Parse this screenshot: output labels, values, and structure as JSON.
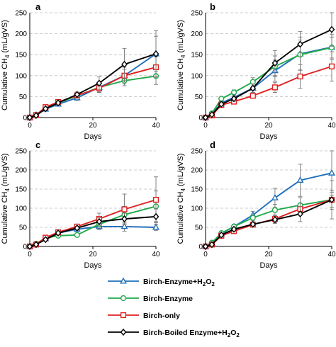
{
  "chart_data": [
    {
      "type": "line",
      "panel_label": "a",
      "xlabel": "Days",
      "ylabel_main": "Cumulative CH",
      "ylabel_sub": "4",
      "ylabel_tail": " (mL/gVS)",
      "xlim": [
        0,
        40
      ],
      "ylim": [
        0,
        250
      ],
      "x_ticks": [
        "0",
        "20",
        "40"
      ],
      "y_ticks": [
        "0",
        "50",
        "100",
        "150",
        "200",
        "250"
      ],
      "grid": "horizontal dashed",
      "x": [
        0,
        2,
        5,
        9,
        15,
        22,
        30,
        40
      ],
      "series": [
        {
          "name": "Birch-Enzyme+H2O2",
          "values": [
            0,
            6,
            20,
            32,
            47,
            72,
            100,
            152
          ],
          "err": [
            0,
            2,
            4,
            5,
            6,
            12,
            20,
            42
          ]
        },
        {
          "name": "Birch-Enzyme",
          "values": [
            0,
            5,
            22,
            35,
            52,
            72,
            88,
            99
          ],
          "err": [
            0,
            2,
            3,
            4,
            5,
            10,
            12,
            20
          ]
        },
        {
          "name": "Birch-only",
          "values": [
            0,
            6,
            25,
            37,
            53,
            70,
            100,
            120
          ],
          "err": [
            0,
            2,
            3,
            4,
            5,
            10,
            15,
            25
          ]
        },
        {
          "name": "Birch-Boiled Enzyme+H2O2",
          "values": [
            0,
            5,
            21,
            35,
            55,
            82,
            127,
            152
          ],
          "err": [
            0,
            2,
            3,
            4,
            6,
            15,
            38,
            55
          ]
        }
      ]
    },
    {
      "type": "line",
      "panel_label": "b",
      "xlabel": "Days",
      "ylabel_main": "Cumulative CH",
      "ylabel_sub": "4",
      "ylabel_tail": " (mL/gVS)",
      "xlim": [
        0,
        40
      ],
      "ylim": [
        0,
        250
      ],
      "x_ticks": [
        "0",
        "20",
        "40"
      ],
      "y_ticks": [
        "0",
        "50",
        "100",
        "150",
        "200",
        "250"
      ],
      "grid": "horizontal dashed",
      "x": [
        0,
        2,
        5,
        9,
        15,
        22,
        30,
        40
      ],
      "series": [
        {
          "name": "Birch-Enzyme+H2O2",
          "values": [
            0,
            8,
            35,
            48,
            70,
            112,
            152,
            168
          ],
          "err": [
            0,
            2,
            4,
            6,
            10,
            25,
            40,
            30
          ]
        },
        {
          "name": "Birch-Enzyme",
          "values": [
            0,
            10,
            45,
            60,
            85,
            122,
            150,
            167
          ],
          "err": [
            0,
            2,
            4,
            6,
            10,
            25,
            35,
            25
          ]
        },
        {
          "name": "Birch-only",
          "values": [
            0,
            5,
            30,
            38,
            52,
            72,
            98,
            122
          ],
          "err": [
            0,
            2,
            3,
            4,
            6,
            12,
            28,
            35
          ]
        },
        {
          "name": "Birch-Boiled Enzyme+H2O2",
          "values": [
            0,
            7,
            32,
            45,
            70,
            130,
            175,
            210
          ],
          "err": [
            0,
            2,
            4,
            6,
            10,
            30,
            30,
            40
          ]
        }
      ]
    },
    {
      "type": "line",
      "panel_label": "c",
      "xlabel": "Days",
      "ylabel_main": "Cumulative CH",
      "ylabel_sub": "4",
      "ylabel_tail": " (mL/gVS)",
      "xlim": [
        0,
        40
      ],
      "ylim": [
        0,
        250
      ],
      "x_ticks": [
        "0",
        "20",
        "40"
      ],
      "y_ticks": [
        "0",
        "50",
        "100",
        "150",
        "200",
        "250"
      ],
      "grid": "horizontal dashed",
      "x": [
        0,
        2,
        5,
        9,
        15,
        22,
        30,
        40
      ],
      "series": [
        {
          "name": "Birch-Enzyme+H2O2",
          "values": [
            0,
            5,
            20,
            35,
            45,
            52,
            52,
            50
          ],
          "err": [
            0,
            2,
            3,
            4,
            5,
            8,
            12,
            8
          ]
        },
        {
          "name": "Birch-Enzyme",
          "values": [
            0,
            7,
            22,
            28,
            30,
            58,
            83,
            105
          ],
          "err": [
            0,
            2,
            3,
            4,
            5,
            10,
            22,
            40
          ]
        },
        {
          "name": "Birch-only",
          "values": [
            0,
            5,
            23,
            37,
            52,
            72,
            97,
            122
          ],
          "err": [
            0,
            2,
            3,
            4,
            6,
            15,
            40,
            60
          ]
        },
        {
          "name": "Birch-Boiled Enzyme+H2O2",
          "values": [
            0,
            5,
            18,
            35,
            48,
            65,
            72,
            78
          ],
          "err": [
            0,
            2,
            3,
            4,
            5,
            10,
            15,
            20
          ]
        }
      ]
    },
    {
      "type": "line",
      "panel_label": "d",
      "xlabel": "Days",
      "ylabel_main": "Cumulative CH",
      "ylabel_sub": "4",
      "ylabel_tail": " (mL/gVS)",
      "xlim": [
        0,
        40
      ],
      "ylim": [
        0,
        250
      ],
      "x_ticks": [
        "0",
        "20",
        "40"
      ],
      "y_ticks": [
        "0",
        "50",
        "100",
        "150",
        "200",
        "250"
      ],
      "grid": "horizontal dashed",
      "x": [
        0,
        2,
        5,
        9,
        15,
        22,
        30,
        40
      ],
      "series": [
        {
          "name": "Birch-Enzyme+H2O2",
          "values": [
            0,
            8,
            33,
            52,
            82,
            127,
            173,
            192
          ],
          "err": [
            0,
            2,
            4,
            6,
            10,
            25,
            42,
            58
          ]
        },
        {
          "name": "Birch-Enzyme",
          "values": [
            0,
            10,
            35,
            52,
            75,
            95,
            108,
            122
          ],
          "err": [
            0,
            2,
            4,
            6,
            8,
            15,
            20,
            25
          ]
        },
        {
          "name": "Birch-only",
          "values": [
            0,
            5,
            28,
            40,
            57,
            72,
            98,
            122
          ],
          "err": [
            0,
            2,
            3,
            4,
            6,
            10,
            15,
            20
          ]
        },
        {
          "name": "Birch-Boiled Enzyme+H2O2",
          "values": [
            0,
            5,
            30,
            45,
            58,
            70,
            85,
            122
          ],
          "err": [
            0,
            2,
            3,
            5,
            6,
            10,
            20,
            50
          ]
        }
      ]
    }
  ],
  "legend": [
    {
      "name": "Birch-Enzyme+H",
      "sub": "2",
      "mid": "O",
      "sub2": "2",
      "color": "#1f6fba",
      "marker": "triangle"
    },
    {
      "name": "Birch-Enzyme",
      "sub": "",
      "mid": "",
      "sub2": "",
      "color": "#22aa4c",
      "marker": "circle"
    },
    {
      "name": "Birch-only",
      "sub": "",
      "mid": "",
      "sub2": "",
      "color": "#e02020",
      "marker": "square"
    },
    {
      "name": "Birch-Boiled Enzyme+H",
      "sub": "2",
      "mid": "O",
      "sub2": "2",
      "color": "#000000",
      "marker": "diamond"
    }
  ],
  "colors": [
    "#1f6fba",
    "#22aa4c",
    "#e02020",
    "#000000"
  ],
  "markers": [
    "triangle",
    "circle",
    "square",
    "diamond"
  ]
}
